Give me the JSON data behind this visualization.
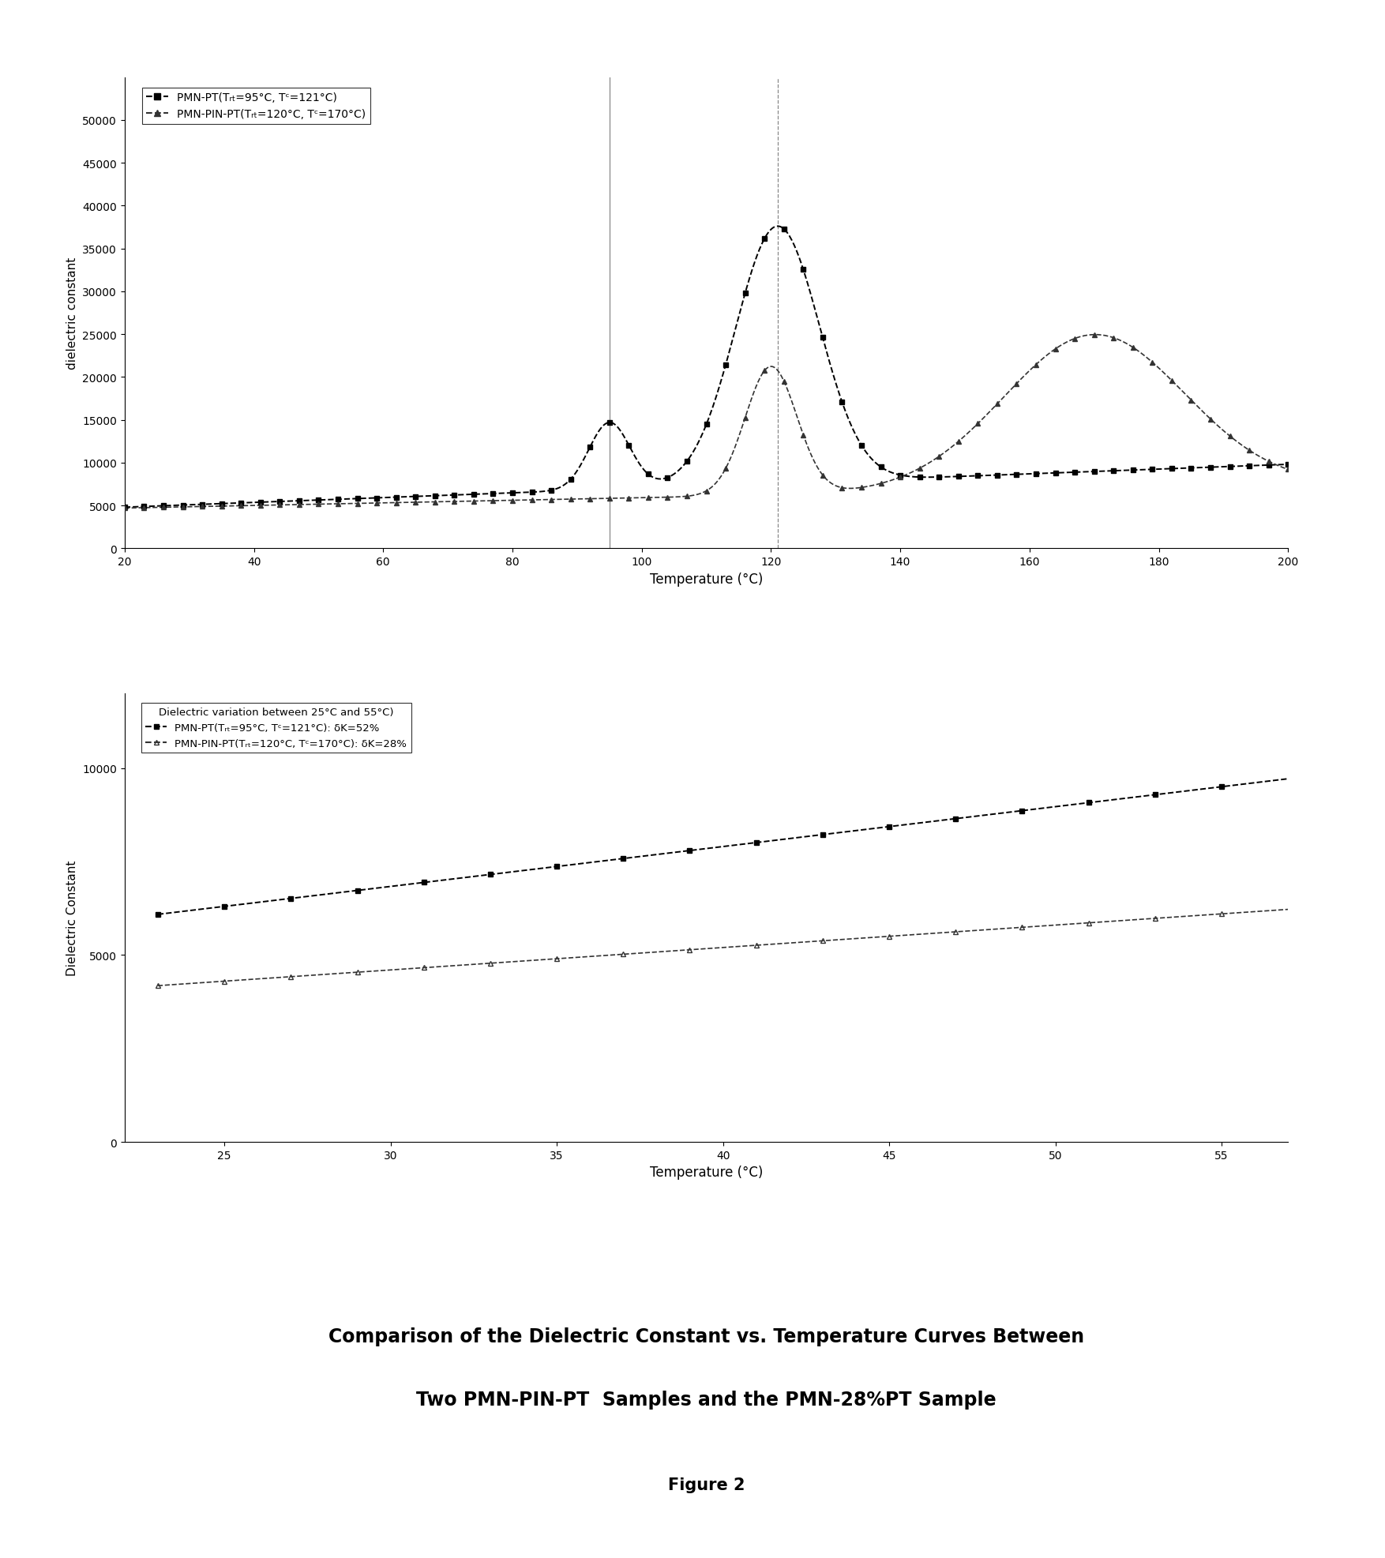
{
  "fig_width": 17.54,
  "fig_height": 19.74,
  "background_color": "#ffffff",
  "plot1": {
    "xlabel": "Temperature (°C)",
    "ylabel": "dielectric constant",
    "xlim": [
      20,
      200
    ],
    "ylim": [
      0,
      55000
    ],
    "yticks": [
      0,
      5000,
      10000,
      15000,
      20000,
      25000,
      30000,
      35000,
      40000,
      45000,
      50000
    ],
    "xticks": [
      20,
      40,
      60,
      80,
      100,
      120,
      140,
      160,
      180,
      200
    ],
    "legend1_label": "PMN-PT(Tᵣₜ=95°C, Tᶜ=121°C)",
    "legend2_label": "PMN-PIN-PT(Tᵣₜ=120°C, Tᶜ=170°C)"
  },
  "plot2": {
    "xlabel": "Temperature (°C)",
    "ylabel": "Dielectric Constant",
    "xlim": [
      22,
      57
    ],
    "ylim": [
      0,
      12000
    ],
    "yticks": [
      0,
      5000,
      10000
    ],
    "xtick_locs": [
      25,
      30,
      35,
      40,
      45,
      50,
      55
    ],
    "xtick_labels": [
      "25",
      "30",
      "35",
      "40",
      "45",
      "50",
      "55"
    ],
    "legend_title": "Dielectric variation between 25°C and 55°C)",
    "legend1_label": "PMN-PT(Tᵣₜ=95°C, Tᶜ=121°C): δK=52%",
    "legend2_label": "PMN-PIN-PT(Tᵣₜ=120°C, Tᶜ=170°C): δK=28%"
  },
  "main_title_line1": "Comparison of the Dielectric Constant vs. Temperature Curves Between",
  "main_title_line2": "Two PMN-PIN-PT  Samples and the PMN-28%PT Sample",
  "figure_label": "Figure 2"
}
